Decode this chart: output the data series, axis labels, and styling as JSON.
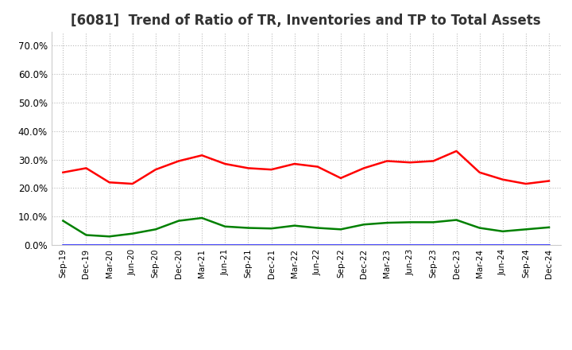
{
  "title": "[6081]  Trend of Ratio of TR, Inventories and TP to Total Assets",
  "x_labels": [
    "Sep-19",
    "Dec-19",
    "Mar-20",
    "Jun-20",
    "Sep-20",
    "Dec-20",
    "Mar-21",
    "Jun-21",
    "Sep-21",
    "Dec-21",
    "Mar-22",
    "Jun-22",
    "Sep-22",
    "Dec-22",
    "Mar-23",
    "Jun-23",
    "Sep-23",
    "Dec-23",
    "Mar-24",
    "Jun-24",
    "Sep-24",
    "Dec-24"
  ],
  "trade_receivables": [
    0.255,
    0.27,
    0.22,
    0.215,
    0.265,
    0.295,
    0.315,
    0.285,
    0.27,
    0.265,
    0.285,
    0.275,
    0.235,
    0.27,
    0.295,
    0.29,
    0.295,
    0.33,
    0.255,
    0.23,
    0.215,
    0.225
  ],
  "inventories": [
    0.001,
    0.001,
    0.001,
    0.001,
    0.001,
    0.001,
    0.001,
    0.001,
    0.001,
    0.001,
    0.001,
    0.001,
    0.001,
    0.001,
    0.001,
    0.001,
    0.001,
    0.001,
    0.001,
    0.001,
    0.001,
    0.001
  ],
  "trade_payables": [
    0.085,
    0.035,
    0.03,
    0.04,
    0.055,
    0.085,
    0.095,
    0.065,
    0.06,
    0.058,
    0.068,
    0.06,
    0.055,
    0.072,
    0.078,
    0.08,
    0.08,
    0.088,
    0.06,
    0.048,
    0.055,
    0.062
  ],
  "tr_color": "#ff0000",
  "inv_color": "#0000ff",
  "tp_color": "#008000",
  "ylim": [
    0.0,
    0.75
  ],
  "yticks": [
    0.0,
    0.1,
    0.2,
    0.3,
    0.4,
    0.5,
    0.6,
    0.7
  ],
  "grid_color": "#bbbbbb",
  "bg_color": "#ffffff",
  "title_fontsize": 12
}
